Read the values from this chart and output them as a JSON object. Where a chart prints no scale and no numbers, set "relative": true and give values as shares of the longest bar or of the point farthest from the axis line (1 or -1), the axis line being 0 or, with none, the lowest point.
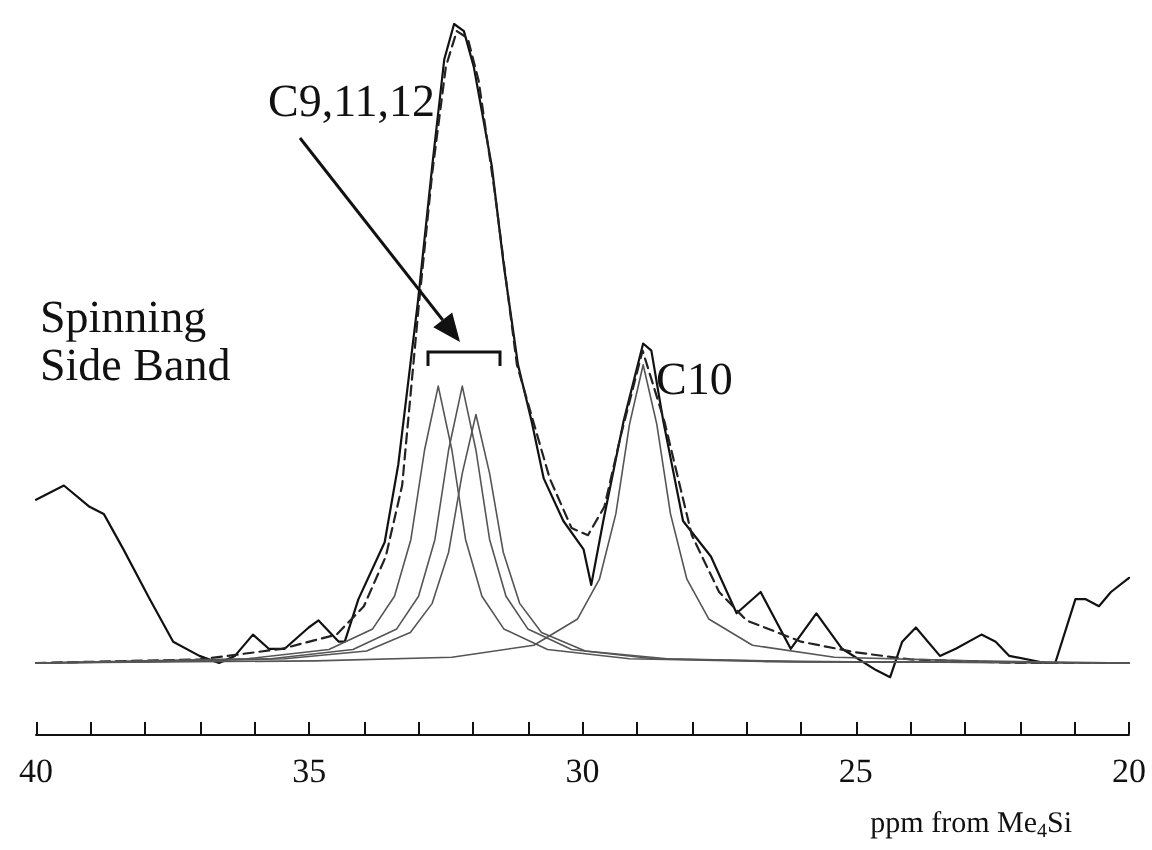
{
  "chart_data": {
    "type": "line",
    "relative": true,
    "marker": "none",
    "grid": false,
    "xlabel": "ppm from Me$_{4}$Si",
    "xlim": [
      40,
      20
    ],
    "xticks": [
      40,
      {
        "value": 39,
        "label": null
      },
      {
        "value": 38,
        "label": null
      },
      {
        "value": 37,
        "label": null
      },
      {
        "value": 36,
        "label": null
      },
      35,
      {
        "value": 34,
        "label": null
      },
      {
        "value": 33,
        "label": null
      },
      {
        "value": 32,
        "label": null
      },
      {
        "value": 31,
        "label": null
      },
      30,
      {
        "value": 29,
        "label": null
      },
      {
        "value": 28,
        "label": null
      },
      {
        "value": 27,
        "label": null
      },
      {
        "value": 26,
        "label": null
      },
      25,
      {
        "value": 24,
        "label": null
      },
      {
        "value": 23,
        "label": null
      },
      {
        "value": 22,
        "label": null
      },
      {
        "value": 21,
        "label": null
      },
      20
    ],
    "annotations": [
      "C9,11,12",
      "C10",
      "Spinning\nSide Band"
    ],
    "series": [
      {
        "color": "#111111",
        "line_style": "solid",
        "x": [
          40.0,
          39.49,
          39.02,
          38.76,
          38.4,
          37.92,
          37.49,
          37.01,
          36.65,
          36.36,
          36.03,
          35.74,
          35.45,
          35.01,
          34.83,
          34.46,
          34.35,
          34.1,
          33.62,
          33.37,
          33.01,
          32.75,
          32.53,
          32.35,
          32.17,
          31.99,
          31.66,
          31.44,
          31.18,
          30.93,
          30.71,
          30.35,
          29.98,
          29.84,
          29.62,
          29.25,
          28.89,
          28.74,
          28.52,
          28.16,
          27.65,
          27.18,
          26.74,
          26.19,
          25.72,
          25.25,
          24.63,
          24.37,
          24.15,
          23.9,
          23.46,
          23.17,
          22.7,
          22.44,
          22.19,
          21.53,
          21.35,
          20.98,
          20.8,
          20.55,
          20.33,
          20.0
        ],
        "values": [
          0.33,
          0.35,
          0.32,
          0.31,
          0.26,
          0.19,
          0.13,
          0.11,
          0.1,
          0.11,
          0.14,
          0.12,
          0.12,
          0.15,
          0.16,
          0.13,
          0.13,
          0.19,
          0.27,
          0.38,
          0.61,
          0.8,
          0.95,
          1.0,
          0.99,
          0.94,
          0.8,
          0.66,
          0.52,
          0.44,
          0.36,
          0.3,
          0.26,
          0.21,
          0.3,
          0.44,
          0.55,
          0.54,
          0.44,
          0.3,
          0.25,
          0.17,
          0.2,
          0.12,
          0.17,
          0.12,
          0.09,
          0.08,
          0.13,
          0.15,
          0.11,
          0.12,
          0.14,
          0.13,
          0.11,
          0.1,
          0.1,
          0.19,
          0.19,
          0.18,
          0.2,
          0.22
        ]
      },
      {
        "color": "#222222",
        "line_style": "dashed",
        "x": [
          40,
          37,
          35.5,
          34.5,
          34,
          33.6,
          33.3,
          33.0,
          32.75,
          32.5,
          32.3,
          32.1,
          31.9,
          31.6,
          31.2,
          30.6,
          30.2,
          29.9,
          29.6,
          29.3,
          28.9,
          28.5,
          28.0,
          27.5,
          27,
          26,
          25,
          24,
          22,
          20
        ],
        "values": [
          0.1,
          0.105,
          0.12,
          0.14,
          0.18,
          0.25,
          0.35,
          0.6,
          0.79,
          0.94,
          0.99,
          0.98,
          0.92,
          0.76,
          0.52,
          0.36,
          0.29,
          0.28,
          0.32,
          0.42,
          0.54,
          0.44,
          0.28,
          0.2,
          0.16,
          0.13,
          0.115,
          0.105,
          0.1,
          0.1
        ]
      },
      {
        "color": "#555555",
        "line_style": "solid",
        "x": [
          40,
          38.64,
          36.14,
          34.64,
          33.84,
          33.44,
          33.14,
          32.89,
          32.64,
          32.39,
          32.14,
          31.84,
          31.44,
          30.64,
          29.14,
          26.64,
          20
        ],
        "values": [
          0.1,
          0.102,
          0.106,
          0.119,
          0.148,
          0.194,
          0.274,
          0.4,
          0.49,
          0.4,
          0.274,
          0.194,
          0.148,
          0.119,
          0.106,
          0.102,
          0.1
        ]
      },
      {
        "color": "#555555",
        "line_style": "solid",
        "x": [
          40,
          38.2,
          35.7,
          34.2,
          33.4,
          33.0,
          32.7,
          32.45,
          32.2,
          31.95,
          31.7,
          31.4,
          31.0,
          30.2,
          28.7,
          26.2,
          20
        ],
        "values": [
          0.1,
          0.102,
          0.106,
          0.119,
          0.148,
          0.194,
          0.274,
          0.4,
          0.49,
          0.4,
          0.274,
          0.194,
          0.148,
          0.119,
          0.106,
          0.102,
          0.1
        ]
      },
      {
        "color": "#555555",
        "line_style": "solid",
        "x": [
          40,
          37.95,
          35.45,
          33.95,
          33.15,
          32.75,
          32.45,
          32.2,
          31.95,
          31.7,
          31.45,
          31.15,
          30.75,
          29.95,
          28.45,
          25.95,
          20
        ],
        "values": [
          0.1,
          0.102,
          0.106,
          0.117,
          0.143,
          0.184,
          0.256,
          0.367,
          0.45,
          0.367,
          0.256,
          0.184,
          0.143,
          0.117,
          0.106,
          0.102,
          0.1
        ]
      },
      {
        "color": "#555555",
        "line_style": "solid",
        "x": [
          40,
          34.89,
          32.39,
          30.89,
          30.09,
          29.69,
          29.39,
          29.14,
          28.89,
          28.64,
          28.39,
          28.09,
          27.69,
          26.89,
          25.39,
          22.89,
          20
        ],
        "values": [
          0.1,
          0.103,
          0.108,
          0.125,
          0.162,
          0.218,
          0.31,
          0.436,
          0.52,
          0.436,
          0.31,
          0.218,
          0.162,
          0.125,
          0.108,
          0.103,
          0.1
        ]
      }
    ]
  }
}
